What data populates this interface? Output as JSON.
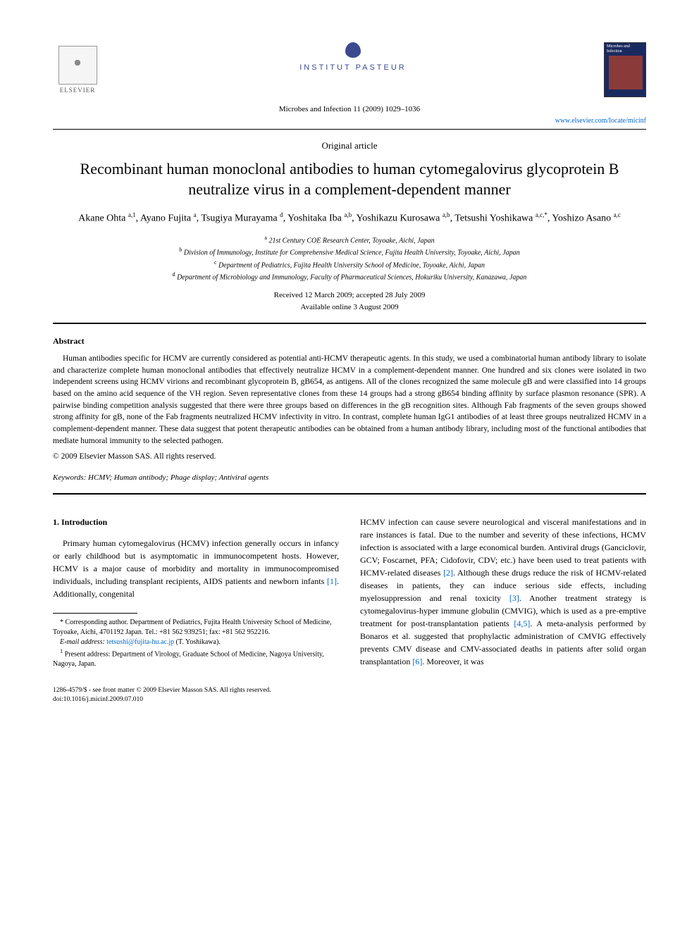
{
  "header": {
    "elsevier_label": "ELSEVIER",
    "pasteur_label": "INSTITUT PASTEUR",
    "journal_cover_title": "Microbes and Infection",
    "journal_citation": "Microbes and Infection 11 (2009) 1029–1036",
    "journal_url": "www.elsevier.com/locate/micinf"
  },
  "article": {
    "type": "Original article",
    "title": "Recombinant human monoclonal antibodies to human cytomegalovirus glycoprotein B neutralize virus in a complement-dependent manner",
    "authors_html": "Akane Ohta <sup>a,1</sup>, Ayano Fujita <sup>a</sup>, Tsugiya Murayama <sup>d</sup>, Yoshitaka Iba <sup>a,b</sup>, Yoshikazu Kurosawa <sup>a,b</sup>, Tetsushi Yoshikawa <sup>a,c,*</sup>, Yoshizo Asano <sup>a,c</sup>",
    "affiliations": [
      {
        "sup": "a",
        "text": "21st Century COE Research Center, Toyoake, Aichi, Japan"
      },
      {
        "sup": "b",
        "text": "Division of Immunology, Institute for Comprehensive Medical Science, Fujita Health University, Toyoake, Aichi, Japan"
      },
      {
        "sup": "c",
        "text": "Department of Pediatrics, Fujita Health University School of Medicine, Toyoake, Aichi, Japan"
      },
      {
        "sup": "d",
        "text": "Department of Microbiology and Immunology, Faculty of Pharmaceutical Sciences, Hokuriku University, Kanazawa, Japan"
      }
    ],
    "received": "Received 12 March 2009; accepted 28 July 2009",
    "available": "Available online 3 August 2009"
  },
  "abstract": {
    "heading": "Abstract",
    "body": "Human antibodies specific for HCMV are currently considered as potential anti-HCMV therapeutic agents. In this study, we used a combinatorial human antibody library to isolate and characterize complete human monoclonal antibodies that effectively neutralize HCMV in a complement-dependent manner. One hundred and six clones were isolated in two independent screens using HCMV virions and recombinant glycoprotein B, gB654, as antigens. All of the clones recognized the same molecule gB and were classified into 14 groups based on the amino acid sequence of the VH region. Seven representative clones from these 14 groups had a strong gB654 binding affinity by surface plasmon resonance (SPR). A pairwise binding competition analysis suggested that there were three groups based on differences in the gB recognition sites. Although Fab fragments of the seven groups showed strong affinity for gB, none of the Fab fragments neutralized HCMV infectivity in vitro. In contrast, complete human IgG1 antibodies of at least three groups neutralized HCMV in a complement-dependent manner. These data suggest that potent therapeutic antibodies can be obtained from a human antibody library, including most of the functional antibodies that mediate humoral immunity to the selected pathogen.",
    "copyright": "© 2009 Elsevier Masson SAS. All rights reserved.",
    "keywords_label": "Keywords:",
    "keywords": "HCMV; Human antibody; Phage display; Antiviral agents"
  },
  "intro": {
    "heading": "1. Introduction",
    "col1": "Primary human cytomegalovirus (HCMV) infection generally occurs in infancy or early childhood but is asymptomatic in immunocompetent hosts. However, HCMV is a major cause of morbidity and mortality in immunocompromised individuals, including transplant recipients, AIDS patients and newborn infants [1]. Additionally, congenital",
    "col2": "HCMV infection can cause severe neurological and visceral manifestations and in rare instances is fatal. Due to the number and severity of these infections, HCMV infection is associated with a large economical burden. Antiviral drugs (Ganciclovir, GCV; Foscarnet, PFA; Cidofovir, CDV; etc.) have been used to treat patients with HCMV-related diseases [2]. Although these drugs reduce the risk of HCMV-related diseases in patients, they can induce serious side effects, including myelosuppression and renal toxicity [3]. Another treatment strategy is cytomegalovirus-hyper immune globulin (CMVIG), which is used as a pre-emptive treatment for post-transplantation patients [4,5]. A meta-analysis performed by Bonaros et al. suggested that prophylactic administration of CMVIG effectively prevents CMV disease and CMV-associated deaths in patients after solid organ transplantation [6]. Moreover, it was"
  },
  "footnotes": {
    "corr": "* Corresponding author. Department of Pediatrics, Fujita Health University School of Medicine, Toyoake, Aichi, 4701192 Japan. Tel.: +81 562 939251; fax: +81 562 952216.",
    "email_label": "E-mail address:",
    "email": "tetsushi@fujita-hu.ac.jp",
    "email_who": "(T. Yoshikawa).",
    "present": "1 Present address: Department of Virology, Graduate School of Medicine, Nagoya University, Nagoya, Japan."
  },
  "footer": {
    "line1": "1286-4579/$ - see front matter © 2009 Elsevier Masson SAS. All rights reserved.",
    "line2": "doi:10.1016/j.micinf.2009.07.010"
  }
}
